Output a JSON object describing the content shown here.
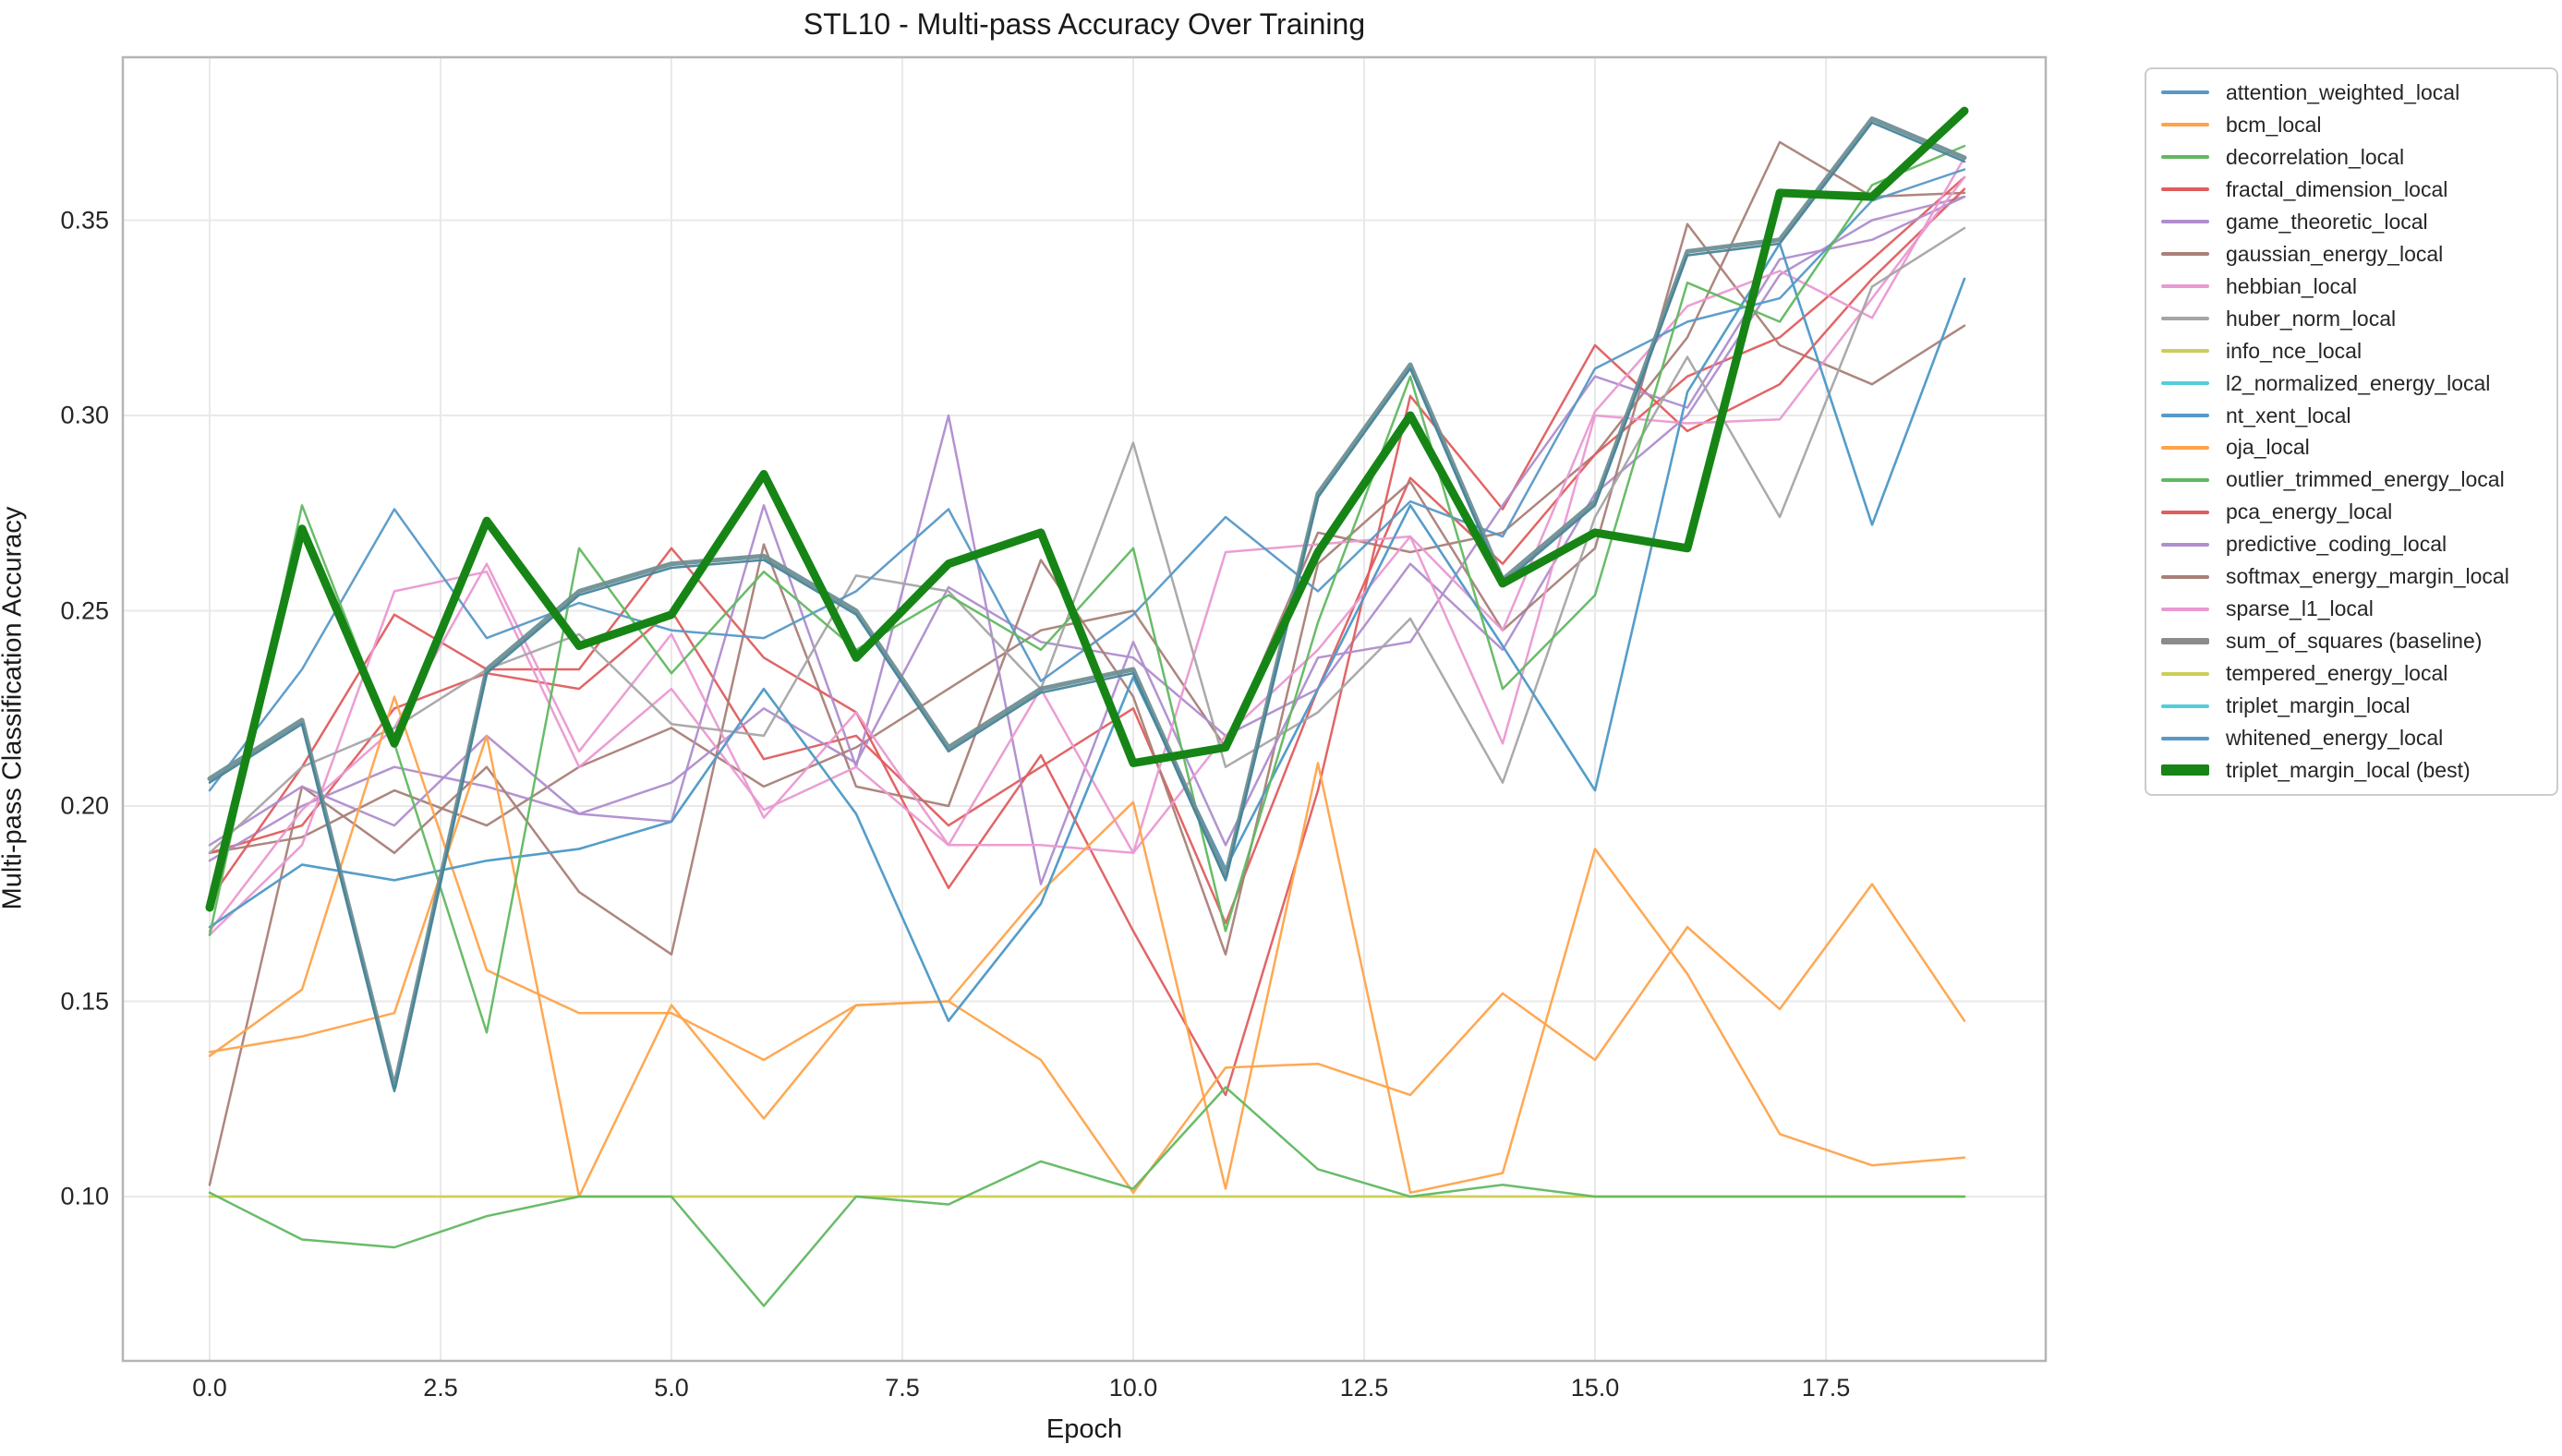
{
  "chart_data": {
    "type": "line",
    "title": "STL10 - Multi-pass Accuracy Over Training",
    "xlabel": "Epoch",
    "ylabel": "Multi-pass Classification Accuracy",
    "x_ticks": [
      0.0,
      2.5,
      5.0,
      7.5,
      10.0,
      12.5,
      15.0,
      17.5
    ],
    "x_tick_labels": [
      "0.0",
      "2.5",
      "5.0",
      "7.5",
      "10.0",
      "12.5",
      "15.0",
      "17.5"
    ],
    "y_ticks": [
      0.1,
      0.15,
      0.2,
      0.25,
      0.3,
      0.35
    ],
    "y_tick_labels": [
      "0.10",
      "0.15",
      "0.20",
      "0.25",
      "0.30",
      "0.35"
    ],
    "xlim": [
      -0.95,
      19.9
    ],
    "ylim": [
      0.058,
      0.392
    ],
    "grid": true,
    "legend_position": "outside-right",
    "x": [
      0,
      1,
      2,
      3,
      4,
      5,
      6,
      7,
      8,
      9,
      10,
      11,
      12,
      13,
      14,
      15,
      16,
      17,
      18,
      19
    ],
    "series": [
      {
        "name": "attention_weighted_local",
        "color": "#5799c7",
        "width": 2.5,
        "values": [
          0.204,
          0.235,
          0.276,
          0.243,
          0.252,
          0.245,
          0.243,
          0.255,
          0.276,
          0.232,
          0.249,
          0.274,
          0.255,
          0.278,
          0.269,
          0.312,
          0.324,
          0.33,
          0.355,
          0.363
        ]
      },
      {
        "name": "bcm_local",
        "color": "#ffa34a",
        "width": 2.5,
        "values": [
          0.137,
          0.141,
          0.147,
          0.218,
          0.1,
          0.149,
          0.12,
          0.149,
          0.15,
          0.135,
          0.101,
          0.133,
          0.134,
          0.126,
          0.152,
          0.135,
          0.169,
          0.148,
          0.18,
          0.145
        ]
      },
      {
        "name": "decorrelation_local",
        "color": "#61b861",
        "width": 2.5,
        "values": [
          0.101,
          0.089,
          0.087,
          0.095,
          0.1,
          0.1,
          0.072,
          0.1,
          0.098,
          0.109,
          0.102,
          0.128,
          0.107,
          0.1,
          0.103,
          0.1,
          0.1,
          0.1,
          0.1,
          0.1
        ]
      },
      {
        "name": "fractal_dimension_local",
        "color": "#e05d5e",
        "width": 2.5,
        "values": [
          0.176,
          0.21,
          0.249,
          0.235,
          0.235,
          0.266,
          0.238,
          0.224,
          0.179,
          0.213,
          0.168,
          0.126,
          0.204,
          0.305,
          0.276,
          0.318,
          0.296,
          0.308,
          0.335,
          0.358
        ]
      },
      {
        "name": "game_theoretic_local",
        "color": "#af8dce",
        "width": 2.5,
        "values": [
          0.19,
          0.205,
          0.195,
          0.218,
          0.198,
          0.196,
          0.277,
          0.21,
          0.3,
          0.18,
          0.242,
          0.19,
          0.238,
          0.242,
          0.277,
          0.31,
          0.302,
          0.34,
          0.345,
          0.356
        ]
      },
      {
        "name": "gaussian_energy_local",
        "color": "#a98078",
        "width": 2.5,
        "values": [
          0.103,
          0.205,
          0.188,
          0.21,
          0.178,
          0.162,
          0.267,
          0.205,
          0.2,
          0.263,
          0.228,
          0.162,
          0.262,
          0.283,
          0.245,
          0.266,
          0.349,
          0.318,
          0.308,
          0.323
        ]
      },
      {
        "name": "hebbian_local",
        "color": "#ea99d1",
        "width": 2.5,
        "values": [
          0.168,
          0.199,
          0.22,
          0.262,
          0.214,
          0.244,
          0.197,
          0.224,
          0.19,
          0.23,
          0.188,
          0.265,
          0.267,
          0.269,
          0.245,
          0.301,
          0.328,
          0.337,
          0.325,
          0.366
        ]
      },
      {
        "name": "huber_norm_local",
        "color": "#a5a5a5",
        "width": 2.5,
        "values": [
          0.188,
          0.21,
          0.22,
          0.235,
          0.244,
          0.221,
          0.218,
          0.259,
          0.255,
          0.23,
          0.293,
          0.21,
          0.224,
          0.248,
          0.206,
          0.274,
          0.315,
          0.274,
          0.333,
          0.348
        ]
      },
      {
        "name": "info_nce_local",
        "color": "#cdcd59",
        "width": 2.5,
        "values": [
          0.1,
          0.1,
          0.1,
          0.1,
          0.1,
          0.1,
          0.1,
          0.1,
          0.1,
          0.1,
          0.1,
          0.1,
          0.1,
          0.1,
          0.1,
          0.1,
          0.1,
          0.1,
          0.1,
          0.1
        ]
      },
      {
        "name": "l2_normalized_energy_local",
        "color": "#51cedb",
        "width": 2.5,
        "values": [
          0.169,
          0.185,
          0.181,
          0.186,
          0.189,
          0.196,
          0.23,
          0.198,
          0.145,
          0.175,
          0.233,
          0.184,
          0.23,
          0.277,
          0.241,
          0.204,
          0.306,
          0.344,
          0.272,
          0.335
        ]
      },
      {
        "name": "nt_xent_local",
        "color": "#5799c7",
        "width": 2.5,
        "values": [
          0.169,
          0.185,
          0.181,
          0.186,
          0.189,
          0.196,
          0.23,
          0.198,
          0.145,
          0.175,
          0.233,
          0.184,
          0.23,
          0.277,
          0.241,
          0.204,
          0.306,
          0.344,
          0.272,
          0.335
        ]
      },
      {
        "name": "oja_local",
        "color": "#ffa34a",
        "width": 2.5,
        "values": [
          0.136,
          0.153,
          0.228,
          0.158,
          0.147,
          0.147,
          0.135,
          0.149,
          0.15,
          0.178,
          0.201,
          0.102,
          0.211,
          0.101,
          0.106,
          0.189,
          0.157,
          0.116,
          0.108,
          0.11
        ]
      },
      {
        "name": "outlier_trimmed_energy_local",
        "color": "#61b861",
        "width": 2.5,
        "values": [
          0.167,
          0.277,
          0.216,
          0.142,
          0.266,
          0.234,
          0.26,
          0.24,
          0.254,
          0.24,
          0.266,
          0.168,
          0.247,
          0.31,
          0.23,
          0.254,
          0.334,
          0.324,
          0.359,
          0.369
        ]
      },
      {
        "name": "pca_energy_local",
        "color": "#e05d5e",
        "width": 2.5,
        "values": [
          0.188,
          0.195,
          0.225,
          0.234,
          0.23,
          0.25,
          0.212,
          0.218,
          0.195,
          0.21,
          0.225,
          0.17,
          0.23,
          0.284,
          0.262,
          0.29,
          0.31,
          0.32,
          0.34,
          0.361
        ]
      },
      {
        "name": "predictive_coding_local",
        "color": "#af8dce",
        "width": 2.5,
        "values": [
          0.186,
          0.2,
          0.21,
          0.205,
          0.198,
          0.206,
          0.225,
          0.211,
          0.256,
          0.242,
          0.238,
          0.218,
          0.23,
          0.262,
          0.24,
          0.28,
          0.3,
          0.336,
          0.35,
          0.356
        ]
      },
      {
        "name": "softmax_energy_margin_local",
        "color": "#a98078",
        "width": 2.5,
        "values": [
          0.188,
          0.192,
          0.204,
          0.195,
          0.21,
          0.22,
          0.205,
          0.215,
          0.23,
          0.245,
          0.25,
          0.215,
          0.27,
          0.265,
          0.27,
          0.29,
          0.32,
          0.37,
          0.356,
          0.357
        ]
      },
      {
        "name": "sparse_l1_local",
        "color": "#ea99d1",
        "width": 2.5,
        "values": [
          0.167,
          0.19,
          0.255,
          0.26,
          0.21,
          0.23,
          0.199,
          0.21,
          0.19,
          0.19,
          0.188,
          0.218,
          0.24,
          0.269,
          0.216,
          0.3,
          0.298,
          0.299,
          0.33,
          0.361
        ]
      },
      {
        "name": "sum_of_squares (baseline)",
        "color": "#8b8b8b",
        "plot_color": "#6f8f94",
        "width": 5,
        "values": [
          0.207,
          0.222,
          0.128,
          0.235,
          0.255,
          0.262,
          0.264,
          0.25,
          0.215,
          0.23,
          0.235,
          0.182,
          0.28,
          0.313,
          0.258,
          0.278,
          0.342,
          0.345,
          0.376,
          0.366
        ]
      },
      {
        "name": "tempered_energy_local",
        "color": "#cdcd59",
        "width": 2.5,
        "values": [
          0.1,
          0.1,
          0.1,
          0.1,
          0.1,
          0.1,
          0.1,
          0.1,
          0.1,
          0.1,
          0.1,
          0.1,
          0.1,
          0.1,
          0.1,
          0.1,
          0.1,
          0.1,
          0.1,
          0.1
        ]
      },
      {
        "name": "triplet_margin_local",
        "color": "#51cedb",
        "width": 2.5,
        "values": [
          0.174,
          0.271,
          0.216,
          0.273,
          0.241,
          0.249,
          0.285,
          0.238,
          0.262,
          0.27,
          0.211,
          0.215,
          0.265,
          0.3,
          0.257,
          0.27,
          0.266,
          0.357,
          0.356,
          0.378
        ]
      },
      {
        "name": "whitened_energy_local",
        "color": "#5799c7",
        "plot_color": "#45859b",
        "width": 2.5,
        "values": [
          0.206,
          0.221,
          0.127,
          0.234,
          0.254,
          0.261,
          0.263,
          0.249,
          0.214,
          0.229,
          0.234,
          0.181,
          0.279,
          0.312,
          0.257,
          0.277,
          0.341,
          0.344,
          0.375,
          0.365
        ]
      },
      {
        "name": "triplet_margin_local (best)",
        "color": "#168516",
        "width": 9,
        "values": [
          0.174,
          0.271,
          0.216,
          0.273,
          0.241,
          0.249,
          0.285,
          0.238,
          0.262,
          0.27,
          0.211,
          0.215,
          0.265,
          0.3,
          0.257,
          0.27,
          0.266,
          0.357,
          0.356,
          0.378
        ]
      }
    ],
    "draw_order": [
      8,
      9,
      18,
      19,
      15,
      13,
      14,
      5,
      3,
      4,
      6,
      16,
      7,
      1,
      11,
      10,
      0,
      2,
      12,
      17,
      20,
      21
    ]
  },
  "colors": {
    "grid": "#e9e9e9",
    "spine": "#b5b5b5",
    "background": "#ffffff",
    "best_line": "#168516"
  }
}
